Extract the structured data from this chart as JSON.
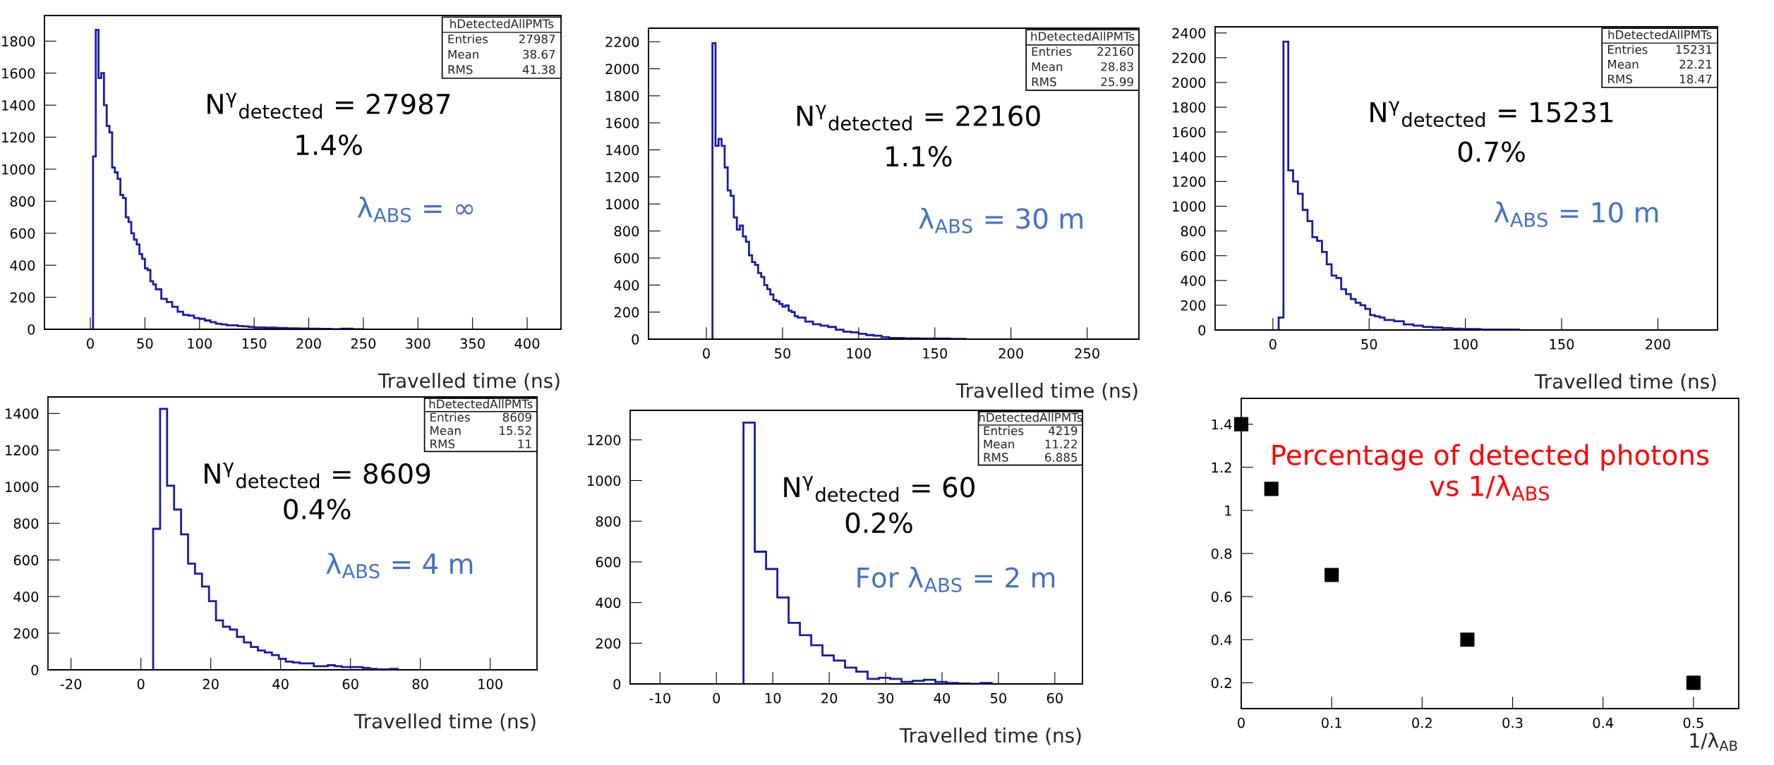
{
  "chart_data": [
    {
      "type": "histogram",
      "xlabel": "Travelled time (ns)",
      "color": "#1a1aa6",
      "bins": [
        2.5,
        5,
        7.5,
        10,
        12.5,
        15,
        17.5,
        20,
        22.5,
        25,
        27.5,
        30,
        32.5,
        35,
        37.5,
        40,
        42.5,
        45,
        47.5,
        50,
        52.5,
        55,
        57.5,
        60,
        65,
        70,
        75,
        80,
        85,
        90,
        95,
        100,
        105,
        110,
        115,
        120,
        125,
        130,
        135,
        140,
        145,
        150,
        160,
        170,
        180,
        190,
        200,
        210,
        220,
        230,
        240,
        250
      ],
      "values": [
        1080,
        1870,
        1570,
        1600,
        1400,
        1270,
        1230,
        1010,
        980,
        940,
        840,
        820,
        700,
        670,
        600,
        560,
        530,
        470,
        440,
        380,
        370,
        300,
        280,
        250,
        190,
        170,
        140,
        110,
        90,
        85,
        70,
        65,
        55,
        45,
        35,
        30,
        25,
        25,
        20,
        18,
        15,
        12,
        10,
        8,
        6,
        5,
        4,
        3,
        1,
        4,
        1
      ],
      "xlim": [
        -42,
        431
      ],
      "ylim": [
        0,
        1960
      ],
      "xticks": [
        0,
        50,
        100,
        150,
        200,
        250,
        300,
        350,
        400
      ],
      "yticks": [
        0,
        200,
        400,
        600,
        800,
        1000,
        1200,
        1400,
        1600,
        1800
      ],
      "annotations": [
        "hDetectedAllPMTs",
        "Entries",
        "27987",
        "Mean",
        "38.67",
        "RMS",
        "41.38",
        "N$^{γ}$$_{detected}$ = 27987",
        "1.4%",
        "λ$_{ABS}$ = ∞"
      ]
    },
    {
      "type": "histogram",
      "xlabel": "Travelled time (ns)",
      "color": "#1a1aa6",
      "bins": [
        4,
        6,
        8,
        10,
        12,
        14,
        16,
        18,
        20,
        22,
        24,
        26,
        28,
        30,
        32,
        34,
        36,
        38,
        40,
        42,
        44,
        46,
        48,
        50,
        52,
        54,
        56,
        58,
        60,
        65,
        70,
        75,
        80,
        85,
        90,
        95,
        100,
        105,
        110,
        115,
        120,
        130,
        140,
        150,
        160,
        170
      ],
      "values": [
        2190,
        1430,
        1480,
        1430,
        1270,
        1100,
        1060,
        900,
        810,
        840,
        760,
        720,
        620,
        570,
        550,
        490,
        460,
        400,
        370,
        330,
        290,
        280,
        260,
        240,
        250,
        210,
        200,
        170,
        160,
        130,
        110,
        100,
        90,
        70,
        55,
        50,
        40,
        30,
        25,
        15,
        8,
        6,
        4,
        4,
        2
      ],
      "xlim": [
        -38,
        284
      ],
      "ylim": [
        0,
        2300
      ],
      "xticks": [
        0,
        50,
        100,
        150,
        200,
        250
      ],
      "yticks": [
        0,
        200,
        400,
        600,
        800,
        1000,
        1200,
        1400,
        1600,
        1800,
        2000,
        2200
      ],
      "annotations": [
        "hDetectedAllPMTs",
        "Entries",
        "22160",
        "Mean",
        "28.83",
        "RMS",
        "25.99",
        "N$^{γ}$$_{detected}$ = 22160",
        "1.1%",
        "λ$_{ABS}$ = 30 m"
      ]
    },
    {
      "type": "histogram",
      "xlabel": "Travelled time (ns)",
      "color": "#1a1aa6",
      "bins": [
        3,
        5.5,
        8,
        10.5,
        13,
        15.5,
        18,
        20.5,
        23,
        25.5,
        28,
        30.5,
        33,
        35.5,
        38,
        40.5,
        43,
        45.5,
        48,
        50.5,
        53,
        55.5,
        58,
        63,
        68,
        73,
        78,
        83,
        88,
        93,
        98,
        108,
        118,
        128
      ],
      "values": [
        100,
        2330,
        1290,
        1200,
        1100,
        970,
        880,
        750,
        720,
        630,
        530,
        440,
        420,
        330,
        290,
        250,
        220,
        200,
        170,
        120,
        110,
        100,
        80,
        70,
        45,
        35,
        25,
        20,
        15,
        10,
        8,
        3,
        3
      ],
      "xlim": [
        -30,
        231
      ],
      "ylim": [
        0,
        2450
      ],
      "xticks": [
        0,
        50,
        100,
        150,
        200
      ],
      "yticks": [
        0,
        200,
        400,
        600,
        800,
        1000,
        1200,
        1400,
        1600,
        1800,
        2000,
        2200,
        2400
      ],
      "annotations": [
        "hDetectedAllPMTs",
        "Entries",
        "15231",
        "Mean",
        "22.21",
        "RMS",
        "18.47",
        "N$^{γ}$$_{detected}$ = 15231",
        "0.7%",
        "λ$_{ABS}$ = 10 m"
      ]
    },
    {
      "type": "histogram",
      "xlabel": "Travelled time (ns)",
      "color": "#1a1aa6",
      "bins": [
        3.5,
        5.5,
        7.5,
        9.5,
        11.5,
        13.5,
        15.5,
        17.5,
        19.5,
        21.5,
        23.5,
        25.5,
        27.5,
        29.5,
        31.5,
        33.5,
        35.5,
        37.5,
        39.5,
        41.5,
        43.5,
        45.5,
        47.5,
        49.5,
        51.5,
        53.5,
        55.5,
        57.5,
        59.5,
        61.5,
        63.5,
        65.5,
        67.5,
        69.5,
        71.5,
        73.5
      ],
      "values": [
        770,
        1425,
        1005,
        875,
        740,
        580,
        525,
        455,
        375,
        270,
        235,
        220,
        180,
        150,
        125,
        105,
        95,
        80,
        60,
        45,
        40,
        35,
        35,
        20,
        20,
        25,
        20,
        15,
        15,
        15,
        10,
        5,
        2,
        2,
        5
      ],
      "xlim": [
        -26.6,
        113.4
      ],
      "ylim": [
        0,
        1490
      ],
      "xticks": [
        -20,
        0,
        20,
        40,
        60,
        80,
        100
      ],
      "yticks": [
        0,
        200,
        400,
        600,
        800,
        1000,
        1200,
        1400
      ],
      "annotations": [
        "hDetectedAllPMTs",
        "Entries",
        "8609",
        "Mean",
        "15.52",
        "RMS",
        "11",
        "N$^{γ}$$_{detected}$ = 8609",
        "0.4%",
        "λ$_{ABS}$ = 4 m"
      ]
    },
    {
      "type": "histogram",
      "xlabel": "Travelled time (ns)",
      "color": "#1a1aa6",
      "bins": [
        4.8,
        6.8,
        8.8,
        10.8,
        12.8,
        14.8,
        16.8,
        18.8,
        20.8,
        22.8,
        24.8,
        26.8,
        28.8,
        30.8,
        32.8,
        34.8,
        36.8,
        38.8,
        40.8,
        42.8,
        44.8,
        46.8,
        48.8
      ],
      "values": [
        1285,
        650,
        565,
        425,
        300,
        240,
        190,
        140,
        115,
        80,
        60,
        25,
        30,
        25,
        10,
        15,
        20,
        10,
        5,
        2,
        0,
        5
      ],
      "xlim": [
        -15.3,
        64.9
      ],
      "ylim": [
        0,
        1345
      ],
      "xticks": [
        -10,
        0,
        10,
        20,
        30,
        40,
        50,
        60
      ],
      "yticks": [
        0,
        200,
        400,
        600,
        800,
        1000,
        1200
      ],
      "annotations": [
        "hDetectedAllPMTs",
        "Entries",
        "4219",
        "Mean",
        "11.22",
        "RMS",
        "6.885",
        "N$^{γ}$$_{detected}$ = 60",
        "0.2%",
        "For λ$_{ABS}$ = 2 m"
      ]
    },
    {
      "type": "scatter",
      "xlabel": "1/λ$_{AB}$",
      "color": "#000000",
      "marker": "square",
      "x": [
        0,
        0.0333,
        0.1,
        0.25,
        0.5
      ],
      "values": [
        1.4,
        1.1,
        0.7,
        0.4,
        0.2
      ],
      "xlim": [
        0,
        0.55
      ],
      "ylim": [
        0.08,
        1.52
      ],
      "xticks": [
        0,
        0.1,
        0.2,
        0.3,
        0.4,
        0.5
      ],
      "yticks": [
        0.2,
        0.4,
        0.6,
        0.8,
        {
          "value": 1,
          "label": "1"
        },
        1.2,
        1.4
      ],
      "annotations": [
        "Percentage of detected photons",
        "vs 1/λ$_{ABS}$"
      ]
    }
  ]
}
